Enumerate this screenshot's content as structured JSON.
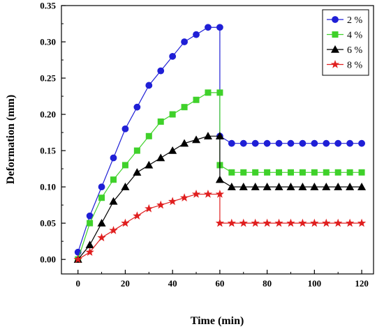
{
  "chart_data": {
    "type": "line",
    "title": "",
    "xlabel": "Time (min)",
    "ylabel": "Deformation (mm)",
    "xlim": [
      -7,
      125
    ],
    "ylim": [
      -0.02,
      0.35
    ],
    "xticks": [
      0,
      20,
      40,
      60,
      80,
      100,
      120
    ],
    "yticks": [
      0.0,
      0.05,
      0.1,
      0.15,
      0.2,
      0.25,
      0.3,
      0.35
    ],
    "xtick_labels": [
      "0",
      "20",
      "40",
      "60",
      "80",
      "100",
      "120"
    ],
    "ytick_labels": [
      "0.00",
      "0.05",
      "0.10",
      "0.15",
      "0.20",
      "0.25",
      "0.30",
      "0.35"
    ],
    "grid": false,
    "legend_position": "top-right",
    "series": [
      {
        "name": "2 %",
        "color": "#1f1fd6",
        "marker": "circle",
        "points": [
          [
            0,
            0.01
          ],
          [
            5,
            0.06
          ],
          [
            10,
            0.1
          ],
          [
            15,
            0.14
          ],
          [
            20,
            0.18
          ],
          [
            25,
            0.21
          ],
          [
            30,
            0.24
          ],
          [
            35,
            0.26
          ],
          [
            40,
            0.28
          ],
          [
            45,
            0.3
          ],
          [
            50,
            0.31
          ],
          [
            55,
            0.32
          ],
          [
            60,
            0.32
          ],
          [
            60,
            0.17
          ],
          [
            65,
            0.16
          ],
          [
            70,
            0.16
          ],
          [
            75,
            0.16
          ],
          [
            80,
            0.16
          ],
          [
            85,
            0.16
          ],
          [
            90,
            0.16
          ],
          [
            95,
            0.16
          ],
          [
            100,
            0.16
          ],
          [
            105,
            0.16
          ],
          [
            110,
            0.16
          ],
          [
            115,
            0.16
          ],
          [
            120,
            0.16
          ]
        ]
      },
      {
        "name": "4 %",
        "color": "#3fd12a",
        "marker": "square",
        "points": [
          [
            0,
            0.0
          ],
          [
            5,
            0.05
          ],
          [
            10,
            0.085
          ],
          [
            15,
            0.11
          ],
          [
            20,
            0.13
          ],
          [
            25,
            0.15
          ],
          [
            30,
            0.17
          ],
          [
            35,
            0.19
          ],
          [
            40,
            0.2
          ],
          [
            45,
            0.21
          ],
          [
            50,
            0.22
          ],
          [
            55,
            0.23
          ],
          [
            60,
            0.23
          ],
          [
            60,
            0.13
          ],
          [
            65,
            0.12
          ],
          [
            70,
            0.12
          ],
          [
            75,
            0.12
          ],
          [
            80,
            0.12
          ],
          [
            85,
            0.12
          ],
          [
            90,
            0.12
          ],
          [
            95,
            0.12
          ],
          [
            100,
            0.12
          ],
          [
            105,
            0.12
          ],
          [
            110,
            0.12
          ],
          [
            115,
            0.12
          ],
          [
            120,
            0.12
          ]
        ]
      },
      {
        "name": "6 %",
        "color": "#000000",
        "marker": "triangle",
        "points": [
          [
            0,
            0.0
          ],
          [
            5,
            0.02
          ],
          [
            10,
            0.05
          ],
          [
            15,
            0.08
          ],
          [
            20,
            0.1
          ],
          [
            25,
            0.12
          ],
          [
            30,
            0.13
          ],
          [
            35,
            0.14
          ],
          [
            40,
            0.15
          ],
          [
            45,
            0.16
          ],
          [
            50,
            0.165
          ],
          [
            55,
            0.17
          ],
          [
            60,
            0.17
          ],
          [
            60,
            0.11
          ],
          [
            65,
            0.1
          ],
          [
            70,
            0.1
          ],
          [
            75,
            0.1
          ],
          [
            80,
            0.1
          ],
          [
            85,
            0.1
          ],
          [
            90,
            0.1
          ],
          [
            95,
            0.1
          ],
          [
            100,
            0.1
          ],
          [
            105,
            0.1
          ],
          [
            110,
            0.1
          ],
          [
            115,
            0.1
          ],
          [
            120,
            0.1
          ]
        ]
      },
      {
        "name": "8 %",
        "color": "#e01f1f",
        "marker": "star",
        "points": [
          [
            0,
            0.0
          ],
          [
            5,
            0.01
          ],
          [
            10,
            0.03
          ],
          [
            15,
            0.04
          ],
          [
            20,
            0.05
          ],
          [
            25,
            0.06
          ],
          [
            30,
            0.07
          ],
          [
            35,
            0.075
          ],
          [
            40,
            0.08
          ],
          [
            45,
            0.085
          ],
          [
            50,
            0.09
          ],
          [
            55,
            0.09
          ],
          [
            60,
            0.09
          ],
          [
            60,
            0.05
          ],
          [
            65,
            0.05
          ],
          [
            70,
            0.05
          ],
          [
            75,
            0.05
          ],
          [
            80,
            0.05
          ],
          [
            85,
            0.05
          ],
          [
            90,
            0.05
          ],
          [
            95,
            0.05
          ],
          [
            100,
            0.05
          ],
          [
            105,
            0.05
          ],
          [
            110,
            0.05
          ],
          [
            115,
            0.05
          ],
          [
            120,
            0.05
          ]
        ]
      }
    ]
  }
}
